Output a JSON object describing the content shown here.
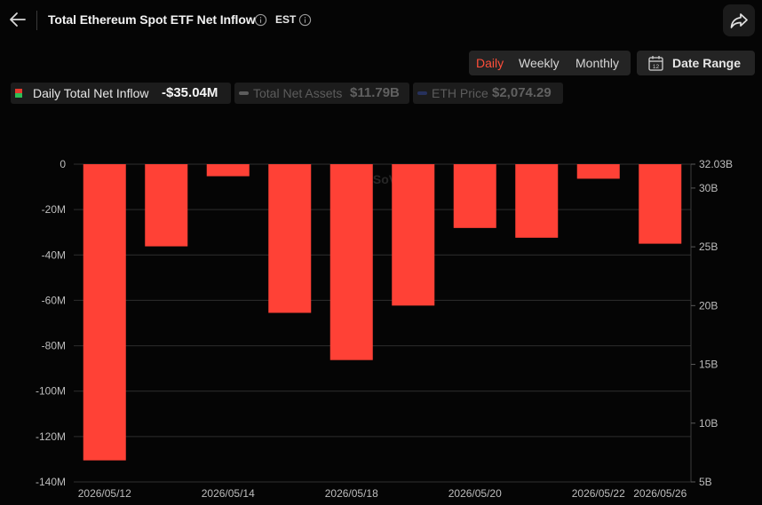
{
  "header": {
    "title": "Total Ethereum Spot ETF Net Inflow",
    "timezone": "EST"
  },
  "periods": {
    "daily": "Daily",
    "weekly": "Weekly",
    "monthly": "Monthly",
    "selected": "Daily"
  },
  "date_range_label": "Date Range",
  "legend": {
    "inflow_label": "Daily Total Net Inflow",
    "inflow_value": "-$35.04M",
    "assets_label": "Total Net Assets",
    "assets_value": "$11.79B",
    "price_label": "ETH Price",
    "price_value": "$2,074.29"
  },
  "colors": {
    "bar": "#ff4136",
    "active_tab": "#ff4e3a",
    "legend_swatch_top": "#e23a2e",
    "legend_swatch_bottom": "#2ebd55",
    "grid": "#2e2e2e"
  },
  "watermark": "SoSoValue",
  "chart_data": {
    "type": "bar",
    "title": "",
    "categories": [
      "2026/05/12",
      "2026/05/13",
      "2026/05/14",
      "2026/05/15",
      "2026/05/18",
      "2026/05/19",
      "2026/05/20",
      "2026/05/21",
      "2026/05/22",
      "2026/05/26"
    ],
    "x_tick_labels": [
      "2026/05/12",
      "2026/05/14",
      "2026/05/18",
      "2026/05/20",
      "2026/05/22",
      "2026/05/26"
    ],
    "series": [
      {
        "name": "Daily Total Net Inflow",
        "unit": "M USD",
        "values": [
          -130.5,
          -36.2,
          -5.3,
          -65.5,
          -86.3,
          -62.3,
          -28.1,
          -32.4,
          -6.4,
          -35.04
        ]
      }
    ],
    "y_axis_left": {
      "ticks": [
        "0",
        "-20M",
        "-40M",
        "-60M",
        "-80M",
        "-100M",
        "-120M",
        "-140M"
      ],
      "range": [
        -140,
        0
      ]
    },
    "y_axis_right": {
      "ticks": [
        "32.03B",
        "30B",
        "25B",
        "20B",
        "15B",
        "10B",
        "5B"
      ],
      "range": [
        5,
        32.03
      ]
    },
    "grid": true
  }
}
